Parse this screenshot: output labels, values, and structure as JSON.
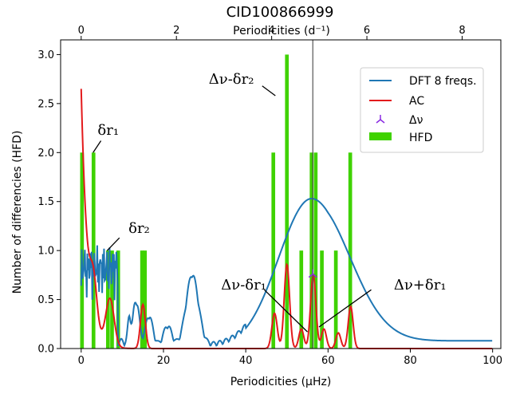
{
  "chart_data": {
    "type": "bar",
    "title": "CID100866999",
    "xlabel": "Periodicities (µHz)",
    "xlabel_top": "Periodicities (d⁻¹)",
    "ylabel": "Number of differencies (HFD)",
    "xlim": [
      -5,
      102
    ],
    "ylim": [
      0,
      3.15
    ],
    "xticks": [
      0,
      20,
      40,
      60,
      80,
      100
    ],
    "xtick_labels": [
      "0",
      "20",
      "40",
      "60",
      "80",
      "100"
    ],
    "yticks": [
      0.0,
      0.5,
      1.0,
      1.5,
      2.0,
      2.5,
      3.0
    ],
    "ytick_labels": [
      "0.0",
      "0.5",
      "1.0",
      "1.5",
      "2.0",
      "2.5",
      "3.0"
    ],
    "top_xticks_uHz": [
      0,
      23.148,
      46.296,
      69.444,
      92.593
    ],
    "top_xtick_labels": [
      "0",
      "2",
      "4",
      "6",
      "8"
    ],
    "grid": false,
    "legend_position": "top-right",
    "legend": [
      {
        "label": "DFT 8 freqs.",
        "color": "#1f77b4",
        "kind": "line"
      },
      {
        "label": "AC",
        "color": "#e31a1c",
        "kind": "line"
      },
      {
        "label": "Δν",
        "color": "#8a2be2",
        "kind": "marker"
      },
      {
        "label": "HFD",
        "color": "#3fd200",
        "kind": "patch"
      }
    ],
    "delta_nu": {
      "x": 56.3,
      "y": 0.76
    },
    "vline_x": 56.3,
    "hfd_bars": [
      {
        "x": 0.2,
        "height": 2.0
      },
      {
        "x": 3.0,
        "height": 2.0
      },
      {
        "x": 6.5,
        "height": 1.0
      },
      {
        "x": 7.5,
        "height": 1.0
      },
      {
        "x": 9.0,
        "height": 1.0
      },
      {
        "x": 14.8,
        "height": 1.0
      },
      {
        "x": 15.5,
        "height": 1.0
      },
      {
        "x": 46.7,
        "height": 2.0
      },
      {
        "x": 50.0,
        "height": 3.0
      },
      {
        "x": 53.5,
        "height": 1.0
      },
      {
        "x": 56.0,
        "height": 2.0
      },
      {
        "x": 57.0,
        "height": 2.0
      },
      {
        "x": 58.5,
        "height": 1.0
      },
      {
        "x": 61.9,
        "height": 1.0
      },
      {
        "x": 65.4,
        "height": 2.0
      }
    ],
    "annotations": [
      {
        "text": "δr₁",
        "x": 4.0,
        "y": 2.23
      },
      {
        "text": "δr₂",
        "x": 11.5,
        "y": 1.23
      },
      {
        "text": "Δν-δr₂",
        "x": 42.0,
        "y": 2.75
      },
      {
        "text": "Δν-δr₁",
        "x": 45.0,
        "y": 0.65
      },
      {
        "text": "Δν+δr₁",
        "x": 76.0,
        "y": 0.65
      }
    ]
  }
}
